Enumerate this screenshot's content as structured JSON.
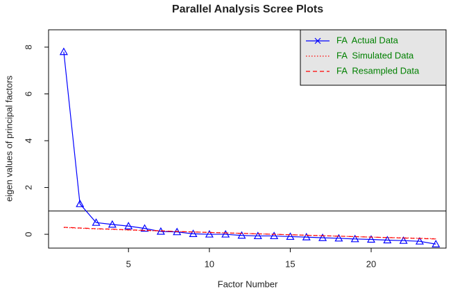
{
  "chart_data": {
    "type": "line",
    "title": "Parallel Analysis Scree Plots",
    "xlabel": "Factor Number",
    "ylabel": "eigen values of principal factors",
    "x": [
      1,
      2,
      3,
      4,
      5,
      6,
      7,
      8,
      9,
      10,
      11,
      12,
      13,
      14,
      15,
      16,
      17,
      18,
      19,
      20,
      21,
      22,
      23,
      24
    ],
    "series": [
      {
        "name": "FA  Actual Data",
        "color": "#0000ff",
        "linestyle": "solid",
        "marker": "triangle",
        "values": [
          7.8,
          1.3,
          0.5,
          0.42,
          0.35,
          0.25,
          0.12,
          0.1,
          0.02,
          0.0,
          0.0,
          -0.05,
          -0.07,
          -0.07,
          -0.1,
          -0.12,
          -0.15,
          -0.17,
          -0.2,
          -0.22,
          -0.25,
          -0.27,
          -0.3,
          -0.42
        ]
      },
      {
        "name": "FA  Simulated Data",
        "color": "#ff0000",
        "linestyle": "dotted",
        "values": [
          0.29,
          0.26,
          0.23,
          0.21,
          0.18,
          0.16,
          0.14,
          0.12,
          0.1,
          0.08,
          0.06,
          0.04,
          0.02,
          0.0,
          -0.02,
          -0.04,
          -0.06,
          -0.08,
          -0.1,
          -0.12,
          -0.14,
          -0.15,
          -0.17,
          -0.19
        ]
      },
      {
        "name": "FA  Resampled Data",
        "color": "#ff0000",
        "linestyle": "dashed",
        "values": [
          0.3,
          0.27,
          0.24,
          0.22,
          0.19,
          0.17,
          0.15,
          0.12,
          0.1,
          0.08,
          0.06,
          0.04,
          0.02,
          0.0,
          -0.02,
          -0.04,
          -0.06,
          -0.08,
          -0.1,
          -0.12,
          -0.14,
          -0.16,
          -0.18,
          -0.2
        ]
      }
    ],
    "hline": 1,
    "xlim": [
      0.06,
      24.63
    ],
    "ylim": [
      -0.59,
      8.74
    ],
    "xticks": [
      5,
      10,
      15,
      20
    ],
    "yticks": [
      0,
      2,
      4,
      6,
      8
    ],
    "legend": "top-right",
    "legend_color": "#008000",
    "legend_background": "#e5e5e5"
  }
}
